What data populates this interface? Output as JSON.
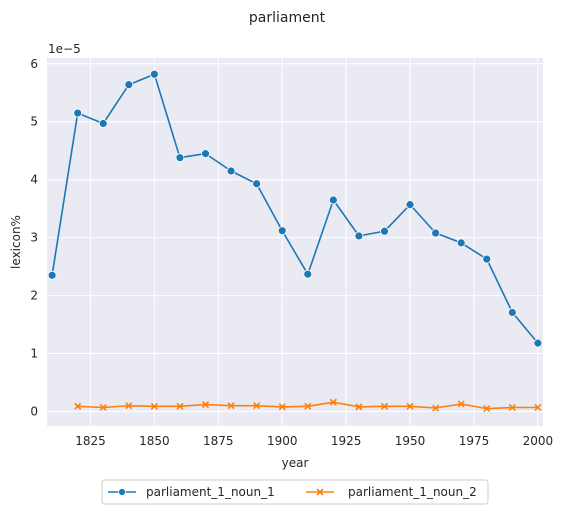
{
  "chart_data": {
    "type": "line",
    "title": "parliament",
    "xlabel": "year",
    "ylabel": "lexicon%",
    "y_scale_text": "1e−5",
    "x": [
      1810,
      1820,
      1830,
      1840,
      1850,
      1860,
      1870,
      1880,
      1890,
      1900,
      1910,
      1920,
      1930,
      1940,
      1950,
      1960,
      1970,
      1980,
      1990,
      2000
    ],
    "xlim": [
      1808,
      2002
    ],
    "ylim": [
      -0.25,
      6.1
    ],
    "x_ticks": [
      1825,
      1850,
      1875,
      1900,
      1925,
      1950,
      1975,
      2000
    ],
    "y_ticks": [
      0,
      1,
      2,
      3,
      4,
      5,
      6
    ],
    "grid": true,
    "legend_position": "bottom-center",
    "series": [
      {
        "name": "parliament_1_noun_1",
        "color": "#1f77b4",
        "marker": "circle",
        "values": [
          2.35,
          5.15,
          4.97,
          5.64,
          5.82,
          4.38,
          4.45,
          4.15,
          3.93,
          3.12,
          2.37,
          3.65,
          3.03,
          3.11,
          3.57,
          3.08,
          2.91,
          2.63,
          1.71,
          1.18
        ]
      },
      {
        "name": "parliament_1_noun_2",
        "color": "#ff7f0e",
        "marker": "x",
        "values": [
          null,
          0.09,
          0.07,
          0.1,
          0.09,
          0.09,
          0.12,
          0.1,
          0.1,
          0.08,
          0.09,
          0.16,
          0.08,
          0.09,
          0.09,
          0.06,
          0.13,
          0.05,
          0.07,
          0.07
        ]
      }
    ]
  }
}
